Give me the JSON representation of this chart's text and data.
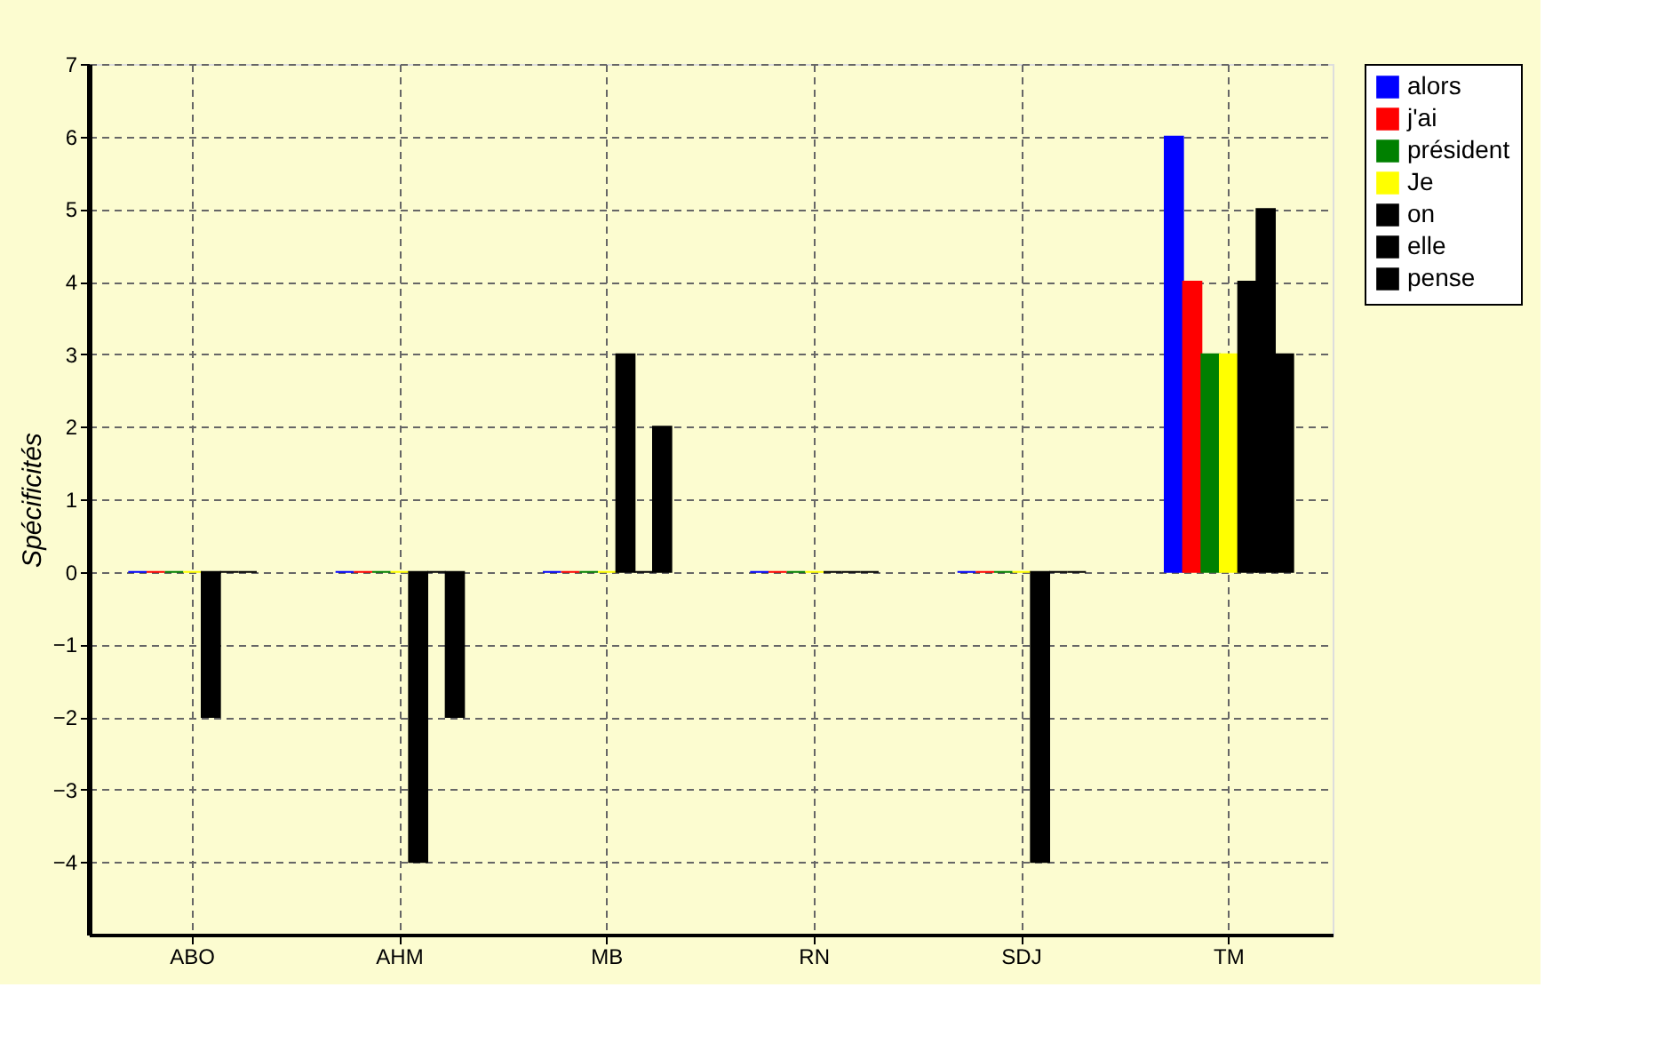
{
  "chart_data": {
    "type": "bar",
    "ylabel": "Spécificités",
    "categories": [
      "ABO",
      "AHM",
      "MB",
      "RN",
      "SDJ",
      "TM"
    ],
    "series": [
      {
        "name": "alors",
        "color": "#0000ff",
        "values": [
          0,
          0,
          0,
          0,
          0,
          6
        ]
      },
      {
        "name": "j'ai",
        "color": "#ff0000",
        "values": [
          0,
          0,
          0,
          0,
          0,
          4
        ]
      },
      {
        "name": "président",
        "color": "#008000",
        "values": [
          0,
          0,
          0,
          0,
          0,
          3
        ]
      },
      {
        "name": "Je",
        "color": "#ffff00",
        "values": [
          0,
          0,
          0,
          0,
          0,
          3
        ]
      },
      {
        "name": "on",
        "color": "#000000",
        "values": [
          -2,
          -4,
          3,
          0,
          -4,
          4
        ]
      },
      {
        "name": "elle",
        "color": "#000000",
        "values": [
          0,
          0,
          0,
          0,
          0,
          5
        ]
      },
      {
        "name": "pense",
        "color": "#000000",
        "values": [
          0,
          -2,
          2,
          0,
          0,
          3
        ]
      }
    ],
    "ylim": [
      -5,
      7
    ],
    "yticks": [
      -4,
      -3,
      -2,
      -1,
      0,
      1,
      2,
      3,
      4,
      5,
      6,
      7
    ],
    "grid": true,
    "legend": "top right"
  }
}
